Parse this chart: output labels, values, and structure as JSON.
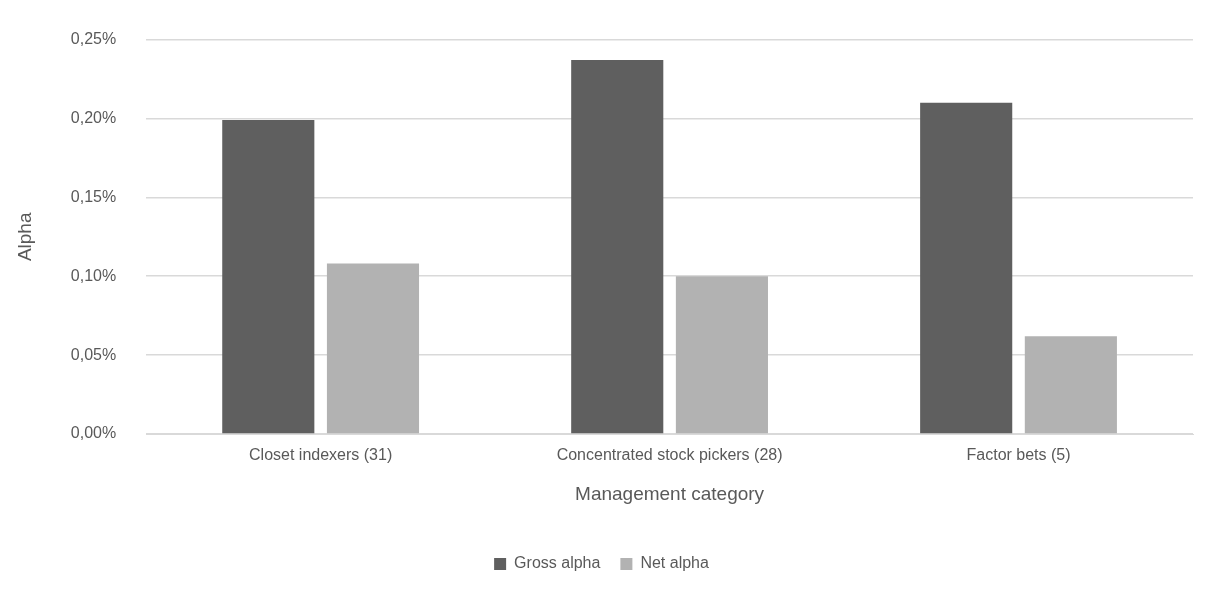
{
  "chart_data": {
    "type": "bar",
    "xlabel": "Management category",
    "ylabel": "Alpha",
    "categories": [
      "Closet indexers (31)",
      "Concentrated stock pickers (28)",
      "Factor bets (5)"
    ],
    "series": [
      {
        "name": "Gross alpha",
        "color": "#5f5f5f",
        "values": [
          0.199,
          0.237,
          0.21
        ]
      },
      {
        "name": "Net alpha",
        "color": "#b2b2b2",
        "values": [
          0.108,
          0.1,
          0.062
        ]
      }
    ],
    "ylim": [
      0,
      0.25
    ],
    "yticks": [
      {
        "value": 0,
        "label": "0,00%"
      },
      {
        "value": 0.05,
        "label": "0,05%"
      },
      {
        "value": 0.1,
        "label": "0,10%"
      },
      {
        "value": 0.15,
        "label": "0,15%"
      },
      {
        "value": 0.2,
        "label": "0,20%"
      },
      {
        "value": 0.25,
        "label": "0,25%"
      }
    ],
    "grid": "y",
    "legend": "bottom"
  }
}
